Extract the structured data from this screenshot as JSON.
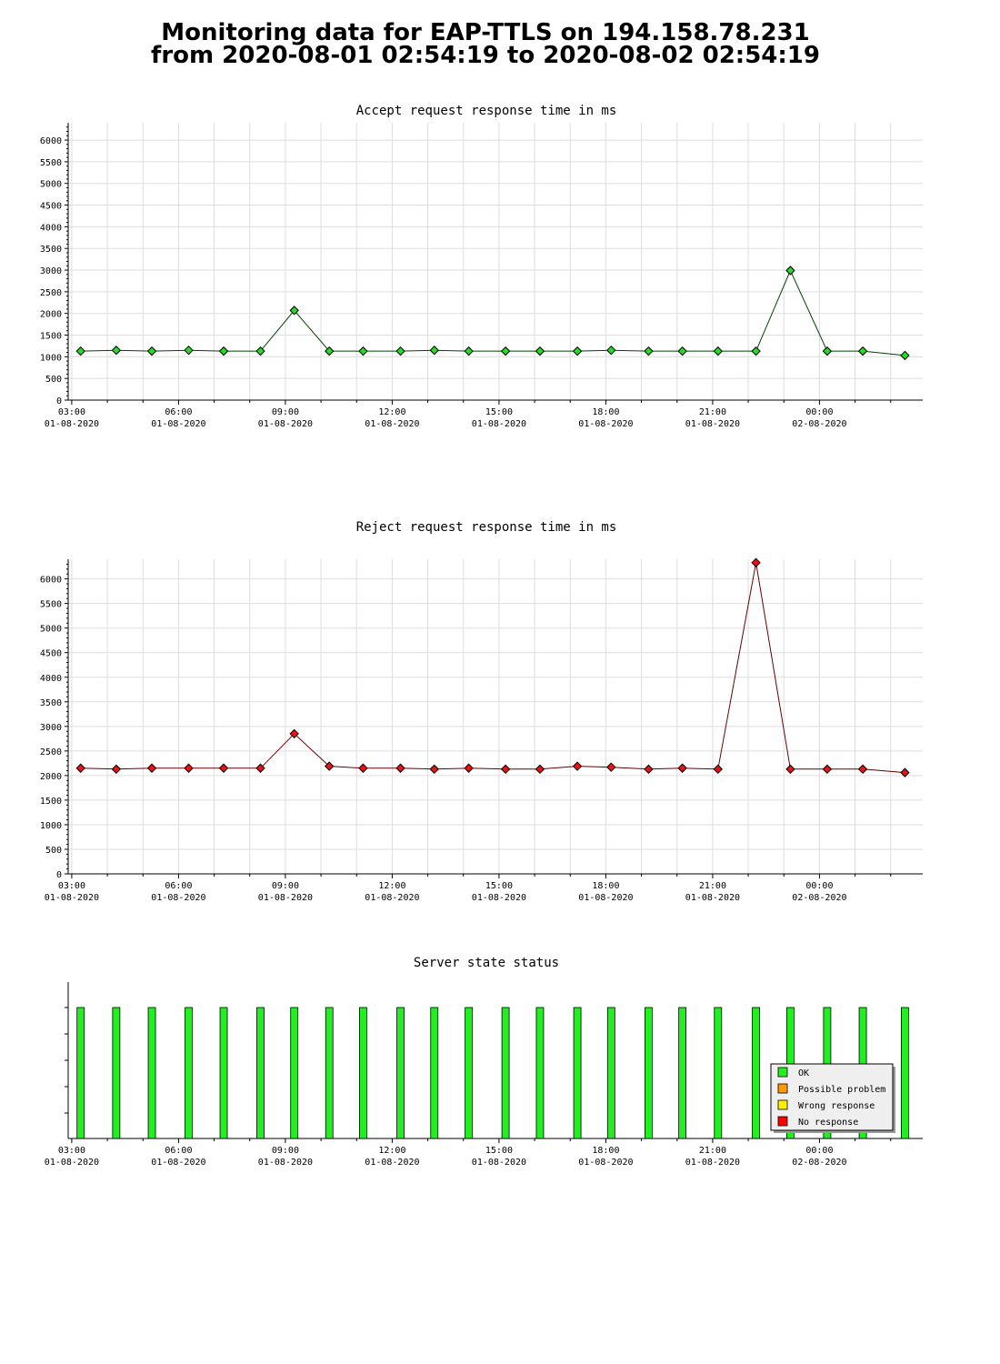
{
  "header": {
    "title_line1": "Monitoring data for EAP-TTLS on 194.158.78.231",
    "title_line2": "from 2020-08-01 02:54:19 to 2020-08-02 02:54:19"
  },
  "colors": {
    "accept_line": "#004400",
    "accept_marker": "#22dd22",
    "reject_line": "#660000",
    "reject_marker": "#ee1111",
    "ok": "#22ee22",
    "possible_problem": "#ff9900",
    "wrong_response": "#ffee00",
    "no_response": "#ff0000",
    "grid": "#dddddd"
  },
  "x_axis": {
    "ticks": [
      {
        "time": "03:00",
        "date": "01-08-2020"
      },
      {
        "time": "06:00",
        "date": "01-08-2020"
      },
      {
        "time": "09:00",
        "date": "01-08-2020"
      },
      {
        "time": "12:00",
        "date": "01-08-2020"
      },
      {
        "time": "15:00",
        "date": "01-08-2020"
      },
      {
        "time": "18:00",
        "date": "01-08-2020"
      },
      {
        "time": "21:00",
        "date": "01-08-2020"
      },
      {
        "time": "00:00",
        "date": "02-08-2020"
      }
    ]
  },
  "chart_data": [
    {
      "type": "line",
      "title": "Accept request response time in ms",
      "xlabel": "",
      "ylabel": "",
      "xlim": [
        "2020-08-01 02:54",
        "2020-08-02 02:54"
      ],
      "ylim": [
        0,
        6400
      ],
      "yticks": [
        0,
        500,
        1000,
        1500,
        2000,
        2500,
        3000,
        3500,
        4000,
        4500,
        5000,
        5500,
        6000
      ],
      "grid": true,
      "x": [
        "2020-08-01 03:15",
        "2020-08-01 04:15",
        "2020-08-01 05:15",
        "2020-08-01 06:17",
        "2020-08-01 07:16",
        "2020-08-01 08:18",
        "2020-08-01 09:15",
        "2020-08-01 10:14",
        "2020-08-01 11:11",
        "2020-08-01 12:14",
        "2020-08-01 13:11",
        "2020-08-01 14:09",
        "2020-08-01 15:11",
        "2020-08-01 16:09",
        "2020-08-01 17:12",
        "2020-08-01 18:09",
        "2020-08-01 19:12",
        "2020-08-01 20:09",
        "2020-08-01 21:09",
        "2020-08-01 22:13",
        "2020-08-01 23:11",
        "2020-08-02 00:13",
        "2020-08-02 01:13",
        "2020-08-02 02:24"
      ],
      "series": [
        {
          "values": [
            1130,
            1150,
            1130,
            1150,
            1130,
            1130,
            2070,
            1130,
            1130,
            1130,
            1150,
            1130,
            1130,
            1130,
            1130,
            1150,
            1130,
            1130,
            1130,
            1130,
            2990,
            1130,
            1130,
            1030
          ]
        }
      ]
    },
    {
      "type": "line",
      "title": "Reject request response time in ms",
      "xlabel": "",
      "ylabel": "",
      "xlim": [
        "2020-08-01 02:54",
        "2020-08-02 02:54"
      ],
      "ylim": [
        0,
        6400
      ],
      "yticks": [
        0,
        500,
        1000,
        1500,
        2000,
        2500,
        3000,
        3500,
        4000,
        4500,
        5000,
        5500,
        6000
      ],
      "grid": true,
      "x": [
        "2020-08-01 03:15",
        "2020-08-01 04:15",
        "2020-08-01 05:15",
        "2020-08-01 06:17",
        "2020-08-01 07:16",
        "2020-08-01 08:18",
        "2020-08-01 09:15",
        "2020-08-01 10:14",
        "2020-08-01 11:11",
        "2020-08-01 12:14",
        "2020-08-01 13:11",
        "2020-08-01 14:09",
        "2020-08-01 15:11",
        "2020-08-01 16:09",
        "2020-08-01 17:12",
        "2020-08-01 18:09",
        "2020-08-01 19:12",
        "2020-08-01 20:09",
        "2020-08-01 21:09",
        "2020-08-01 22:13",
        "2020-08-01 23:11",
        "2020-08-02 00:13",
        "2020-08-02 01:13",
        "2020-08-02 02:24"
      ],
      "series": [
        {
          "values": [
            2150,
            2130,
            2150,
            2150,
            2150,
            2150,
            2850,
            2190,
            2150,
            2150,
            2130,
            2150,
            2130,
            2130,
            2190,
            2170,
            2130,
            2150,
            2130,
            6330,
            2130,
            2130,
            2130,
            2060
          ]
        }
      ]
    },
    {
      "type": "bar",
      "title": "Server state status",
      "xlabel": "",
      "ylabel": "",
      "xlim": [
        "2020-08-01 02:54",
        "2020-08-02 02:54"
      ],
      "grid": false,
      "legend_placement": "bottom-right",
      "legend": [
        "OK",
        "Possible problem",
        "Wrong response",
        "No response"
      ],
      "x": [
        "2020-08-01 03:15",
        "2020-08-01 04:15",
        "2020-08-01 05:15",
        "2020-08-01 06:17",
        "2020-08-01 07:16",
        "2020-08-01 08:18",
        "2020-08-01 09:15",
        "2020-08-01 10:14",
        "2020-08-01 11:11",
        "2020-08-01 12:14",
        "2020-08-01 13:11",
        "2020-08-01 14:09",
        "2020-08-01 15:11",
        "2020-08-01 16:09",
        "2020-08-01 17:12",
        "2020-08-01 18:09",
        "2020-08-01 19:12",
        "2020-08-01 20:09",
        "2020-08-01 21:09",
        "2020-08-01 22:13",
        "2020-08-01 23:11",
        "2020-08-02 00:13",
        "2020-08-02 01:13",
        "2020-08-02 02:24"
      ],
      "states": [
        "OK",
        "OK",
        "OK",
        "OK",
        "OK",
        "OK",
        "OK",
        "OK",
        "OK",
        "OK",
        "OK",
        "OK",
        "OK",
        "OK",
        "OK",
        "OK",
        "OK",
        "OK",
        "OK",
        "OK",
        "OK",
        "OK",
        "OK",
        "OK"
      ]
    }
  ]
}
